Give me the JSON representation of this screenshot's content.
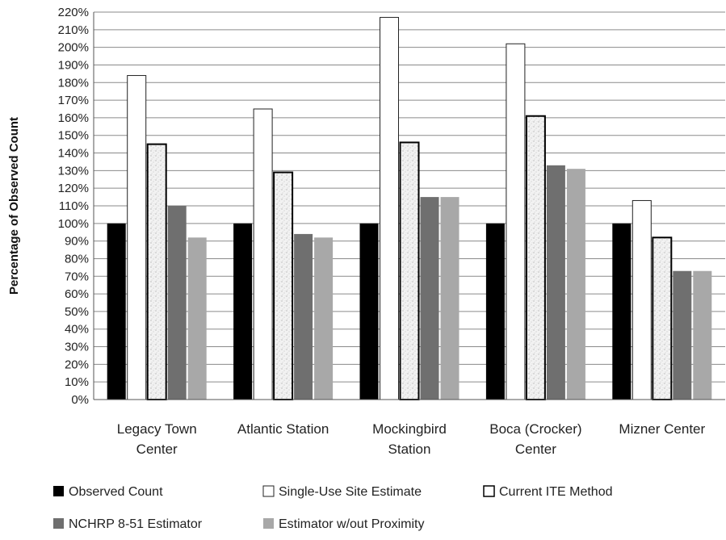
{
  "chart_data": {
    "type": "bar",
    "title": "",
    "xlabel": "",
    "ylabel": "Percentage of Observed Count",
    "ylim": [
      0,
      220
    ],
    "ytick_step": 10,
    "ytick_suffix": "%",
    "grid": true,
    "legend_position": "bottom",
    "categories": [
      [
        "Legacy Town",
        "Center"
      ],
      [
        "Atlantic Station"
      ],
      [
        "Mockingbird",
        "Station"
      ],
      [
        "Boca (Crocker)",
        "Center"
      ],
      [
        "Mizner Center"
      ]
    ],
    "series": [
      {
        "name": "Observed Count",
        "color": "#000000",
        "pattern": "solid",
        "values": [
          100,
          100,
          100,
          100,
          100
        ]
      },
      {
        "name": "Single-Use Site Estimate",
        "color": "#ffffff",
        "pattern": "outline",
        "values": [
          184,
          165,
          217,
          202,
          113
        ]
      },
      {
        "name": "Current ITE Method",
        "color": "#eeeeee",
        "pattern": "speckled",
        "values": [
          145,
          129,
          146,
          161,
          92
        ]
      },
      {
        "name": "NCHRP 8-51 Estimator",
        "color": "#6f6f6f",
        "pattern": "solid",
        "values": [
          110,
          94,
          115,
          133,
          73
        ]
      },
      {
        "name": "Estimator w/out Proximity",
        "color": "#a8a8a8",
        "pattern": "solid",
        "values": [
          92,
          92,
          115,
          131,
          73
        ]
      }
    ]
  }
}
